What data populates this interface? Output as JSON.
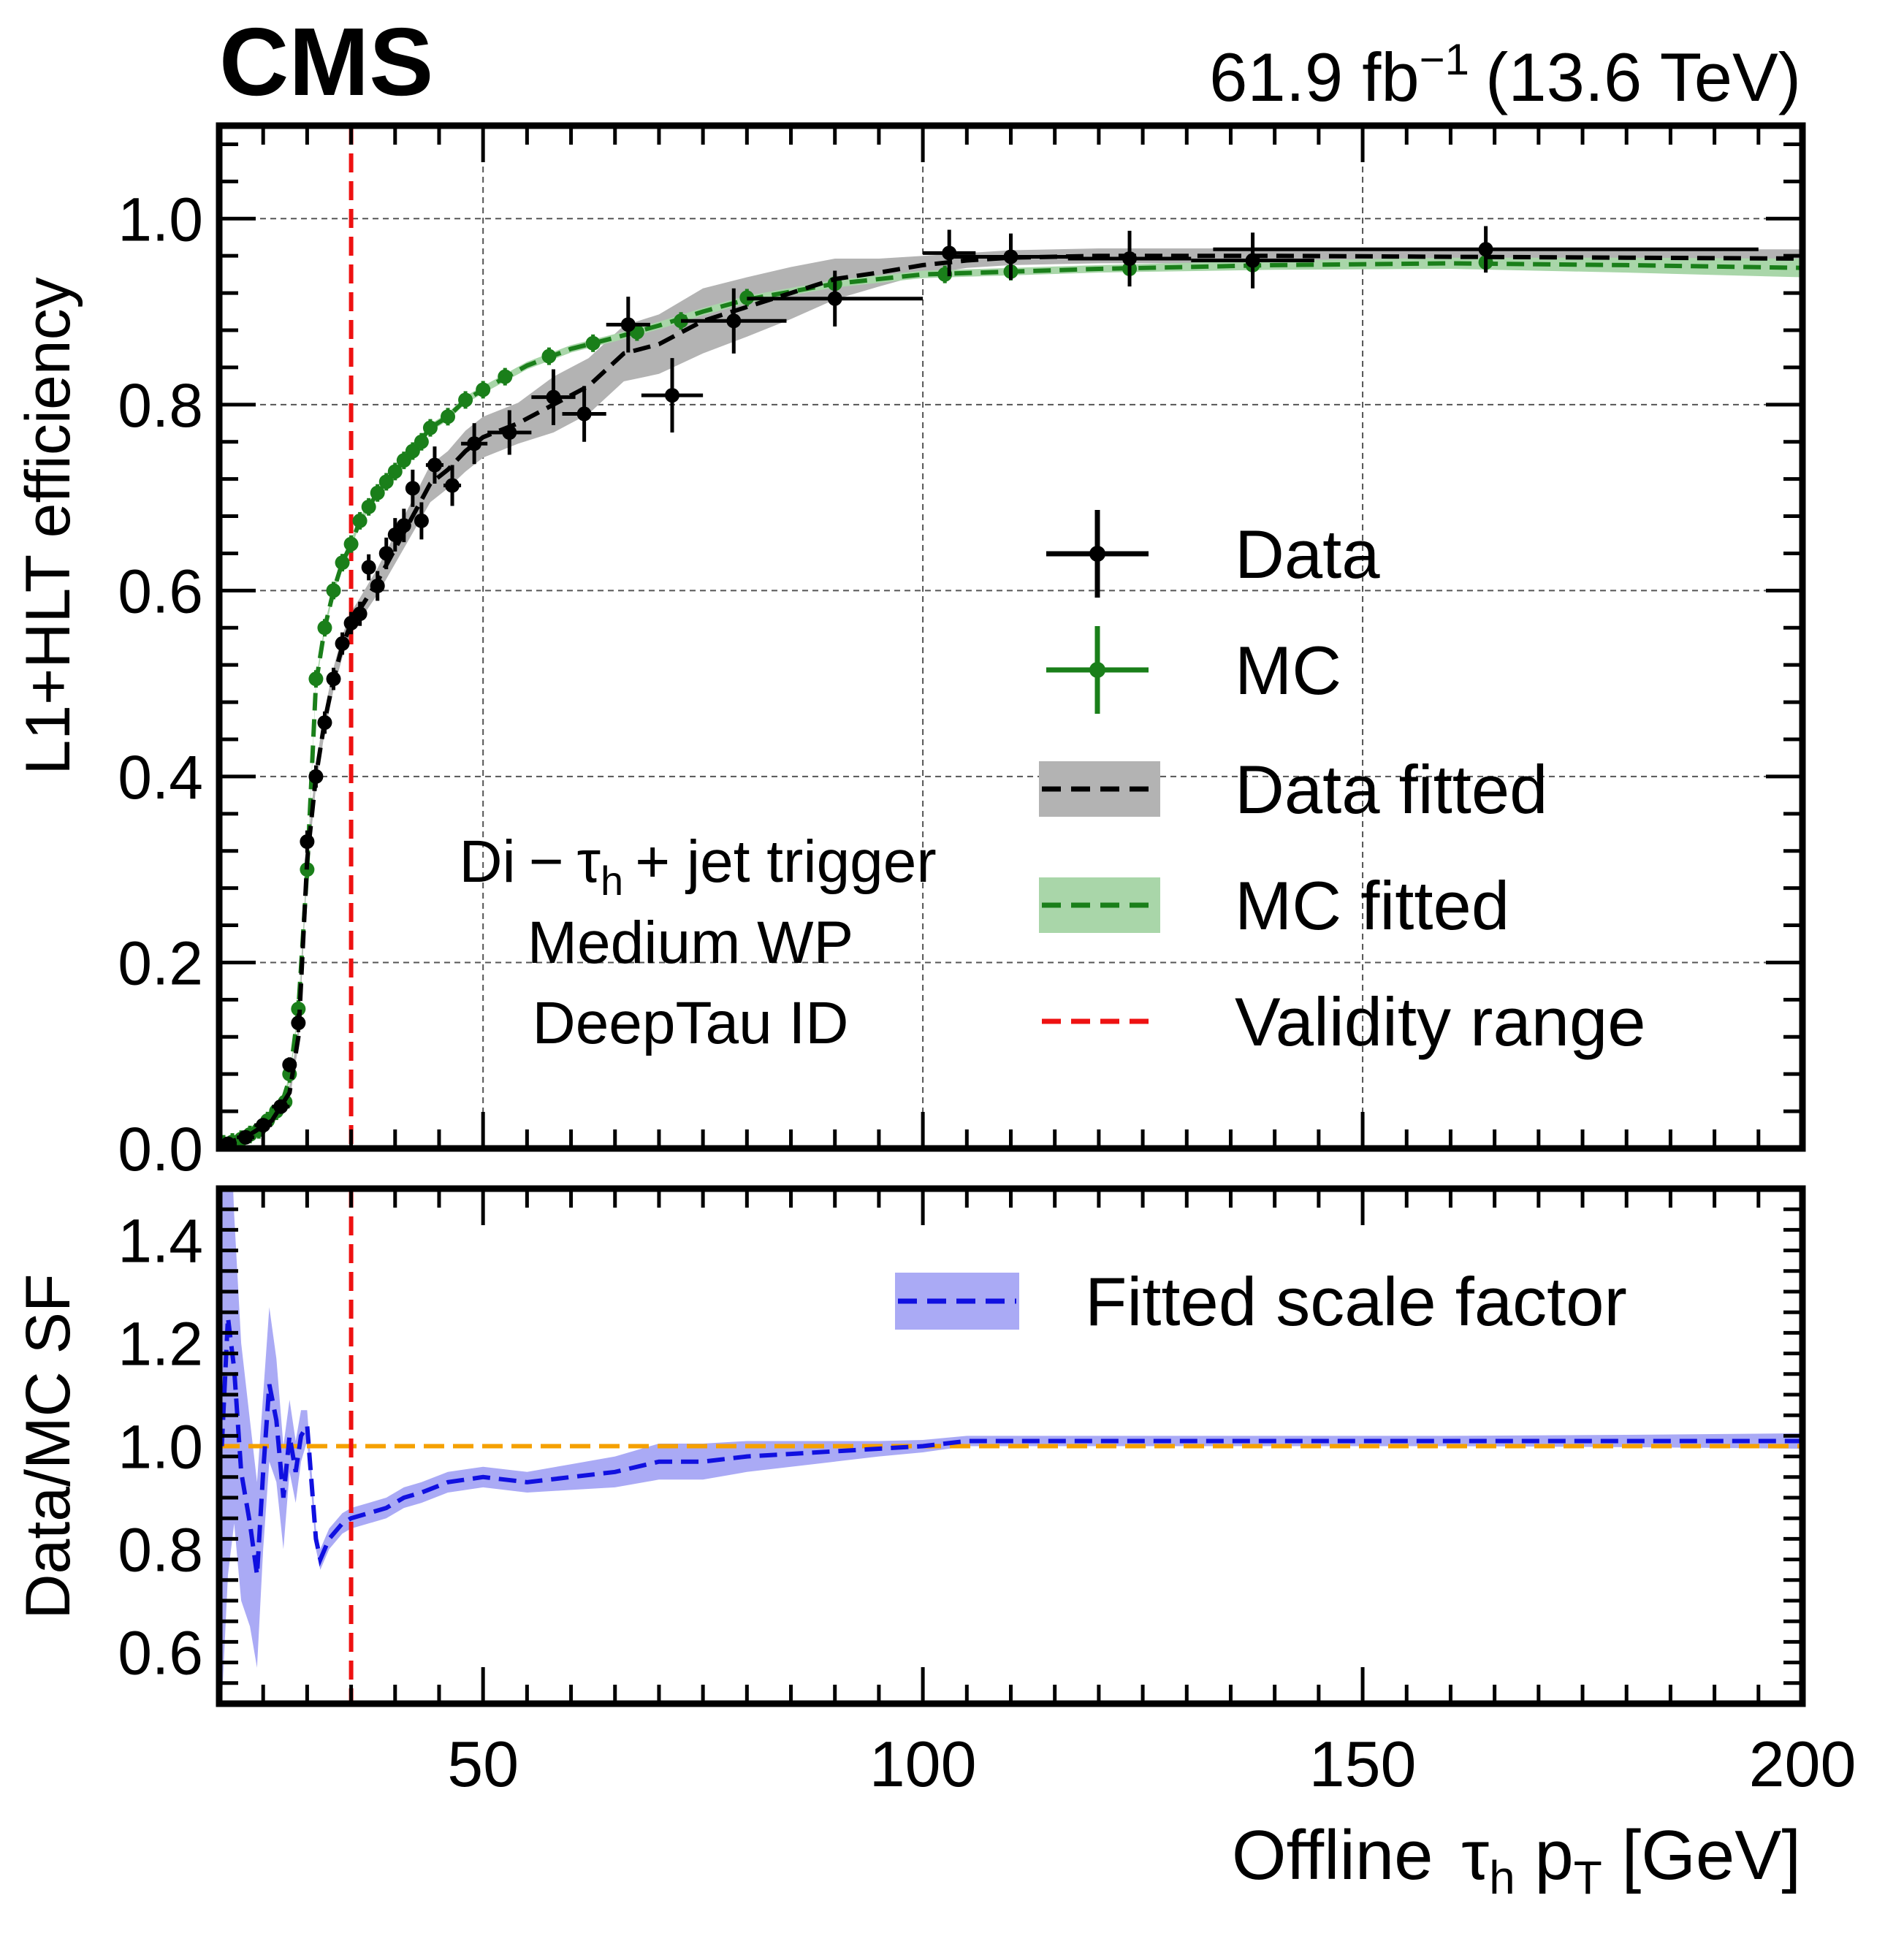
{
  "header": {
    "experiment": "CMS",
    "lumi_main": "61.9 fb",
    "lumi_sup": "−1",
    "lumi_energy": "(13.6 TeV)"
  },
  "colors": {
    "data": "#000000",
    "mc": "#1a7f1a",
    "data_band": "#b3b3b3",
    "mc_band": "#a9d6a9",
    "validity": "#ee1111",
    "sf_line": "#1010e0",
    "sf_band": "#aaaaf5",
    "unity": "#f5a000"
  },
  "chart_data": [
    {
      "type": "scatter",
      "panel": "top",
      "ylabel": "L1+HLT efficiency",
      "xlim": [
        20,
        200
      ],
      "ylim": [
        0,
        1.1
      ],
      "xticks": [
        50,
        100,
        150,
        200
      ],
      "yticks": [
        0.0,
        0.2,
        0.4,
        0.6,
        0.8,
        1.0
      ],
      "ytick_labels": [
        "0.0",
        "0.2",
        "0.4",
        "0.6",
        "0.8",
        "1.0"
      ],
      "grid": true,
      "legend_position": "center-right",
      "legend": [
        "Data",
        "MC",
        "Data fitted",
        "MC fitted",
        "Validity range"
      ],
      "annotation": {
        "line1_prefix": "Di",
        "line1_dash": "−",
        "line1_tau": "τ",
        "line1_sub": "h",
        "line1_suffix": "+ jet trigger",
        "line2": "Medium WP",
        "line3": "DeepTau ID"
      },
      "validity_x": 35,
      "series": [
        {
          "name": "Data",
          "points": [
            {
              "x": 21,
              "xerr": 1,
              "y": 0.005,
              "yerr": 0.003
            },
            {
              "x": 23,
              "xerr": 1,
              "y": 0.012,
              "yerr": 0.004
            },
            {
              "x": 25,
              "xerr": 1,
              "y": 0.025,
              "yerr": 0.005
            },
            {
              "x": 27,
              "xerr": 1,
              "y": 0.045,
              "yerr": 0.006
            },
            {
              "x": 28,
              "xerr": 0.5,
              "y": 0.09,
              "yerr": 0.008
            },
            {
              "x": 29,
              "xerr": 0.5,
              "y": 0.135,
              "yerr": 0.01
            },
            {
              "x": 30,
              "xerr": 0.5,
              "y": 0.33,
              "yerr": 0.012
            },
            {
              "x": 31,
              "xerr": 0.5,
              "y": 0.4,
              "yerr": 0.012
            },
            {
              "x": 32,
              "xerr": 0.5,
              "y": 0.458,
              "yerr": 0.012
            },
            {
              "x": 33,
              "xerr": 0.5,
              "y": 0.505,
              "yerr": 0.012
            },
            {
              "x": 34,
              "xerr": 0.5,
              "y": 0.543,
              "yerr": 0.012
            },
            {
              "x": 35,
              "xerr": 0.5,
              "y": 0.565,
              "yerr": 0.012
            },
            {
              "x": 36,
              "xerr": 0.5,
              "y": 0.575,
              "yerr": 0.013
            },
            {
              "x": 37,
              "xerr": 0.5,
              "y": 0.625,
              "yerr": 0.014
            },
            {
              "x": 38,
              "xerr": 0.5,
              "y": 0.605,
              "yerr": 0.016
            },
            {
              "x": 39,
              "xerr": 0.5,
              "y": 0.64,
              "yerr": 0.017
            },
            {
              "x": 40,
              "xerr": 0.5,
              "y": 0.66,
              "yerr": 0.018
            },
            {
              "x": 41,
              "xerr": 0.5,
              "y": 0.67,
              "yerr": 0.018
            },
            {
              "x": 42,
              "xerr": 0.5,
              "y": 0.71,
              "yerr": 0.02
            },
            {
              "x": 43,
              "xerr": 0.5,
              "y": 0.675,
              "yerr": 0.02
            },
            {
              "x": 44.5,
              "xerr": 1,
              "y": 0.735,
              "yerr": 0.02
            },
            {
              "x": 46.5,
              "xerr": 1,
              "y": 0.713,
              "yerr": 0.022
            },
            {
              "x": 49,
              "xerr": 1.5,
              "y": 0.758,
              "yerr": 0.022
            },
            {
              "x": 53,
              "xerr": 2.5,
              "y": 0.77,
              "yerr": 0.024
            },
            {
              "x": 58,
              "xerr": 2.5,
              "y": 0.808,
              "yerr": 0.03
            },
            {
              "x": 61.5,
              "xerr": 2.5,
              "y": 0.79,
              "yerr": 0.03
            },
            {
              "x": 66.5,
              "xerr": 2.5,
              "y": 0.886,
              "yerr": 0.03
            },
            {
              "x": 71.5,
              "xerr": 3.5,
              "y": 0.81,
              "yerr": 0.04
            },
            {
              "x": 78.5,
              "xerr": 6,
              "y": 0.89,
              "yerr": 0.035
            },
            {
              "x": 90,
              "xerr": 10,
              "y": 0.914,
              "yerr": 0.03
            },
            {
              "x": 103,
              "xerr": 3,
              "y": 0.963,
              "yerr": 0.025
            },
            {
              "x": 110,
              "xerr": 7,
              "y": 0.959,
              "yerr": 0.025
            },
            {
              "x": 123.5,
              "xerr": 7,
              "y": 0.957,
              "yerr": 0.03
            },
            {
              "x": 137.5,
              "xerr": 7,
              "y": 0.955,
              "yerr": 0.03
            },
            {
              "x": 164,
              "xerr": 31,
              "y": 0.967,
              "yerr": 0.025
            }
          ]
        },
        {
          "name": "MC",
          "points": [
            {
              "x": 20.5,
              "y": 0.005
            },
            {
              "x": 21.5,
              "y": 0.007
            },
            {
              "x": 22.5,
              "y": 0.01
            },
            {
              "x": 23.5,
              "y": 0.015
            },
            {
              "x": 24.5,
              "y": 0.02
            },
            {
              "x": 25.5,
              "y": 0.03
            },
            {
              "x": 26.5,
              "y": 0.04
            },
            {
              "x": 27.5,
              "y": 0.05
            },
            {
              "x": 28,
              "y": 0.08
            },
            {
              "x": 29,
              "y": 0.15
            },
            {
              "x": 30,
              "y": 0.3
            },
            {
              "x": 31,
              "y": 0.505
            },
            {
              "x": 32,
              "y": 0.56
            },
            {
              "x": 33,
              "y": 0.6
            },
            {
              "x": 34,
              "y": 0.63
            },
            {
              "x": 35,
              "y": 0.65
            },
            {
              "x": 36,
              "y": 0.675
            },
            {
              "x": 37,
              "y": 0.69
            },
            {
              "x": 38,
              "y": 0.705
            },
            {
              "x": 39,
              "y": 0.717
            },
            {
              "x": 40,
              "y": 0.728
            },
            {
              "x": 41,
              "y": 0.74
            },
            {
              "x": 42,
              "y": 0.75
            },
            {
              "x": 43,
              "y": 0.76
            },
            {
              "x": 44,
              "y": 0.775
            },
            {
              "x": 46,
              "y": 0.787
            },
            {
              "x": 48,
              "y": 0.805
            },
            {
              "x": 50,
              "y": 0.816
            },
            {
              "x": 52.5,
              "y": 0.83
            },
            {
              "x": 57.5,
              "y": 0.852
            },
            {
              "x": 62.5,
              "y": 0.866
            },
            {
              "x": 67.5,
              "y": 0.878
            },
            {
              "x": 72.5,
              "y": 0.89
            },
            {
              "x": 80,
              "y": 0.915
            },
            {
              "x": 90,
              "y": 0.93
            },
            {
              "x": 102.5,
              "y": 0.94
            },
            {
              "x": 110,
              "y": 0.943
            },
            {
              "x": 123.5,
              "y": 0.946
            },
            {
              "x": 137.5,
              "y": 0.95
            },
            {
              "x": 164,
              "y": 0.953
            }
          ]
        },
        {
          "name": "Data fitted",
          "x": [
            20,
            23,
            26,
            28,
            29,
            30,
            31,
            32,
            33,
            34,
            35,
            36,
            38,
            40,
            42,
            44,
            46,
            48,
            50,
            54,
            58,
            62,
            66,
            70,
            75,
            80,
            85,
            90,
            95,
            100,
            105,
            110,
            120,
            140,
            160,
            180,
            200
          ],
          "y": [
            0.004,
            0.012,
            0.03,
            0.06,
            0.12,
            0.31,
            0.4,
            0.46,
            0.505,
            0.54,
            0.565,
            0.58,
            0.61,
            0.645,
            0.68,
            0.715,
            0.73,
            0.75,
            0.765,
            0.78,
            0.8,
            0.82,
            0.855,
            0.865,
            0.89,
            0.905,
            0.92,
            0.935,
            0.942,
            0.95,
            0.955,
            0.958,
            0.96,
            0.96,
            0.959,
            0.958,
            0.957
          ],
          "band_halfwidth": [
            0.002,
            0.004,
            0.006,
            0.008,
            0.01,
            0.012,
            0.012,
            0.012,
            0.012,
            0.012,
            0.012,
            0.012,
            0.014,
            0.016,
            0.018,
            0.02,
            0.02,
            0.022,
            0.022,
            0.022,
            0.03,
            0.03,
            0.03,
            0.032,
            0.035,
            0.032,
            0.028,
            0.022,
            0.015,
            0.01,
            0.008,
            0.008,
            0.008,
            0.008,
            0.008,
            0.009,
            0.01
          ]
        },
        {
          "name": "MC fitted",
          "x": [
            20,
            22,
            24,
            26,
            27,
            28,
            29,
            30,
            31,
            32,
            33,
            34,
            35,
            36,
            38,
            40,
            42,
            44,
            46,
            48,
            50,
            55,
            60,
            65,
            70,
            75,
            80,
            90,
            100,
            110,
            120,
            140,
            160,
            180,
            200
          ],
          "y": [
            0.005,
            0.009,
            0.017,
            0.03,
            0.045,
            0.075,
            0.15,
            0.3,
            0.5,
            0.56,
            0.6,
            0.63,
            0.65,
            0.675,
            0.705,
            0.728,
            0.75,
            0.775,
            0.787,
            0.805,
            0.816,
            0.842,
            0.86,
            0.872,
            0.885,
            0.9,
            0.913,
            0.93,
            0.94,
            0.943,
            0.946,
            0.95,
            0.952,
            0.95,
            0.947
          ],
          "band_halfwidth": [
            0.002,
            0.002,
            0.003,
            0.003,
            0.003,
            0.004,
            0.004,
            0.004,
            0.004,
            0.004,
            0.004,
            0.004,
            0.004,
            0.004,
            0.004,
            0.004,
            0.004,
            0.004,
            0.004,
            0.004,
            0.004,
            0.004,
            0.004,
            0.004,
            0.004,
            0.004,
            0.004,
            0.004,
            0.004,
            0.004,
            0.004,
            0.005,
            0.006,
            0.008,
            0.01
          ]
        }
      ]
    },
    {
      "type": "line",
      "panel": "bottom",
      "xlabel_prefix": "Offline ",
      "xlabel_tau": "τ",
      "xlabel_tau_sub": "h",
      "xlabel_p": " p",
      "xlabel_p_sub": "T",
      "xlabel_unit": " [GeV]",
      "ylabel": "Data/MC SF",
      "xlim": [
        20,
        200
      ],
      "ylim": [
        0.5,
        1.5
      ],
      "xticks": [
        50,
        100,
        150,
        200
      ],
      "xtick_labels": [
        "50",
        "100",
        "150",
        "200"
      ],
      "yticks": [
        0.6,
        0.8,
        1.0,
        1.2,
        1.4
      ],
      "ytick_labels": [
        "0.6",
        "0.8",
        "1.0",
        "1.2",
        "1.4"
      ],
      "legend_position": "top-right",
      "legend": [
        "Fitted scale factor"
      ],
      "unity_line": 1.0,
      "series": [
        {
          "name": "Fitted scale factor",
          "x": [
            20.3,
            21,
            21.7,
            22.5,
            23.5,
            24.3,
            25,
            25.7,
            26.5,
            27.3,
            28,
            28.7,
            29.3,
            30,
            31,
            31.5,
            32.5,
            34,
            35,
            37,
            39,
            41,
            43,
            46,
            50,
            55,
            60,
            65,
            70,
            75,
            80,
            85,
            90,
            95,
            100,
            105,
            110,
            120,
            140,
            160,
            180,
            200
          ],
          "y": [
            1.0,
            1.25,
            1.15,
            0.95,
            0.85,
            0.75,
            0.95,
            1.12,
            1.05,
            0.9,
            1.02,
            0.95,
            1.02,
            1.04,
            0.82,
            0.78,
            0.82,
            0.85,
            0.86,
            0.87,
            0.88,
            0.9,
            0.91,
            0.93,
            0.94,
            0.93,
            0.94,
            0.95,
            0.97,
            0.97,
            0.98,
            0.985,
            0.99,
            0.995,
            1.0,
            1.01,
            1.01,
            1.01,
            1.01,
            1.01,
            1.01,
            1.01
          ],
          "band_halfwidth": [
            0.5,
            0.5,
            0.3,
            0.25,
            0.2,
            0.18,
            0.15,
            0.15,
            0.12,
            0.1,
            0.07,
            0.06,
            0.05,
            0.03,
            0.02,
            0.02,
            0.02,
            0.02,
            0.02,
            0.02,
            0.02,
            0.02,
            0.02,
            0.02,
            0.02,
            0.02,
            0.025,
            0.03,
            0.035,
            0.035,
            0.03,
            0.025,
            0.02,
            0.015,
            0.012,
            0.01,
            0.01,
            0.01,
            0.01,
            0.01,
            0.012,
            0.015
          ]
        }
      ]
    }
  ]
}
